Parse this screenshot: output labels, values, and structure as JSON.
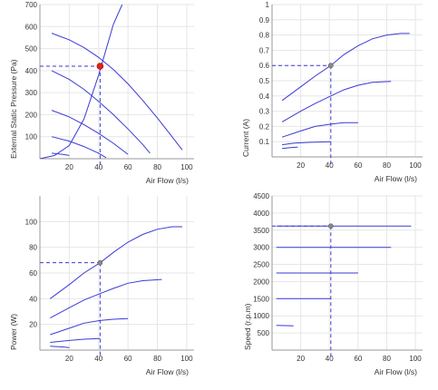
{
  "chart_data": [
    {
      "type": "line",
      "ylabel": "External Static Pressure (Pa)",
      "xlabel": "Air Flow (l/s)",
      "xlim": [
        0,
        105
      ],
      "ylim": [
        0,
        700
      ],
      "x_ticks": [
        20,
        40,
        60,
        80,
        100
      ],
      "y_ticks": [
        100,
        200,
        300,
        400,
        500,
        600,
        700
      ],
      "grid": true,
      "series": [
        {
          "values": [
            [
              8,
              570
            ],
            [
              20,
              540
            ],
            [
              30,
              505
            ],
            [
              40,
              460
            ],
            [
              50,
              405
            ],
            [
              60,
              340
            ],
            [
              70,
              265
            ],
            [
              80,
              185
            ],
            [
              90,
              100
            ],
            [
              97,
              40
            ]
          ]
        },
        {
          "values": [
            [
              8,
              400
            ],
            [
              20,
              360
            ],
            [
              30,
              315
            ],
            [
              40,
              260
            ],
            [
              50,
              200
            ],
            [
              60,
              135
            ],
            [
              70,
              65
            ],
            [
              75,
              25
            ]
          ]
        },
        {
          "values": [
            [
              8,
              220
            ],
            [
              20,
              190
            ],
            [
              30,
              155
            ],
            [
              40,
              115
            ],
            [
              50,
              70
            ],
            [
              60,
              20
            ]
          ]
        },
        {
          "values": [
            [
              8,
              100
            ],
            [
              20,
              80
            ],
            [
              30,
              55
            ],
            [
              40,
              25
            ],
            [
              45,
              5
            ]
          ]
        },
        {
          "values": [
            [
              8,
              25
            ],
            [
              15,
              20
            ],
            [
              20,
              15
            ]
          ]
        },
        {
          "values": [
            [
              0,
              0
            ],
            [
              10,
              15
            ],
            [
              20,
              60
            ],
            [
              30,
              180
            ],
            [
              40,
              380
            ],
            [
              50,
              610
            ],
            [
              56,
              700
            ]
          ]
        }
      ],
      "operating_point": {
        "x": 41,
        "y": 420,
        "color": "#e0201c"
      }
    },
    {
      "type": "line",
      "ylabel": "Current (A)",
      "xlabel": "Air Flow (l/s)",
      "xlim": [
        0,
        105
      ],
      "ylim": [
        0,
        1
      ],
      "x_ticks": [
        20,
        40,
        60,
        80,
        100
      ],
      "y_ticks": [
        0.1,
        0.2,
        0.3,
        0.4,
        0.5,
        0.6,
        0.7,
        0.8,
        0.9,
        1
      ],
      "y_tick_labels": [
        "0.1",
        "0.2",
        "0.3",
        "0.4",
        "0.5",
        "0.6",
        "0.7",
        "0.8",
        "0.9",
        "1"
      ],
      "grid": true,
      "series": [
        {
          "values": [
            [
              7,
              0.37
            ],
            [
              20,
              0.46
            ],
            [
              30,
              0.53
            ],
            [
              41,
              0.6
            ],
            [
              50,
              0.67
            ],
            [
              60,
              0.73
            ],
            [
              70,
              0.775
            ],
            [
              80,
              0.8
            ],
            [
              90,
              0.81
            ],
            [
              96,
              0.81
            ]
          ]
        },
        {
          "values": [
            [
              7,
              0.23
            ],
            [
              20,
              0.3
            ],
            [
              30,
              0.35
            ],
            [
              41,
              0.4
            ],
            [
              50,
              0.44
            ],
            [
              60,
              0.47
            ],
            [
              70,
              0.49
            ],
            [
              83,
              0.495
            ]
          ]
        },
        {
          "values": [
            [
              7,
              0.13
            ],
            [
              20,
              0.17
            ],
            [
              30,
              0.2
            ],
            [
              41,
              0.215
            ],
            [
              50,
              0.225
            ],
            [
              60,
              0.225
            ]
          ]
        },
        {
          "values": [
            [
              7,
              0.08
            ],
            [
              15,
              0.09
            ],
            [
              25,
              0.095
            ],
            [
              41,
              0.1
            ]
          ]
        },
        {
          "values": [
            [
              7,
              0.055
            ],
            [
              12,
              0.06
            ],
            [
              18,
              0.065
            ]
          ]
        }
      ],
      "operating_point": {
        "x": 41,
        "y": 0.6,
        "color": "#888888"
      }
    },
    {
      "type": "line",
      "ylabel": "Power (W)",
      "xlabel": "Air Flow (l/s)",
      "xlim": [
        0,
        105
      ],
      "ylim": [
        0,
        120
      ],
      "x_ticks": [
        20,
        40,
        60,
        80,
        100
      ],
      "y_ticks": [
        20,
        40,
        60,
        80,
        100
      ],
      "grid": true,
      "series": [
        {
          "values": [
            [
              7,
              40
            ],
            [
              20,
              51
            ],
            [
              30,
              60
            ],
            [
              41,
              68
            ],
            [
              50,
              76
            ],
            [
              60,
              84
            ],
            [
              70,
              90
            ],
            [
              80,
              94
            ],
            [
              90,
              96
            ],
            [
              97,
              96
            ]
          ]
        },
        {
          "values": [
            [
              7,
              25
            ],
            [
              20,
              33
            ],
            [
              30,
              39
            ],
            [
              41,
              44
            ],
            [
              50,
              48
            ],
            [
              60,
              52
            ],
            [
              70,
              54
            ],
            [
              83,
              55
            ]
          ]
        },
        {
          "values": [
            [
              7,
              12
            ],
            [
              20,
              17
            ],
            [
              30,
              21
            ],
            [
              41,
              23
            ],
            [
              50,
              24
            ],
            [
              60,
              24.5
            ]
          ]
        },
        {
          "values": [
            [
              7,
              6
            ],
            [
              20,
              7.5
            ],
            [
              30,
              8.5
            ],
            [
              41,
              9
            ]
          ]
        },
        {
          "values": [
            [
              7,
              3
            ],
            [
              15,
              2.5
            ],
            [
              20,
              2
            ]
          ]
        }
      ],
      "operating_point": {
        "x": 41,
        "y": 68,
        "color": "#888888"
      }
    },
    {
      "type": "line",
      "ylabel": "Speed (r.p.m)",
      "xlabel": "Air Flow (l/s)",
      "xlim": [
        0,
        105
      ],
      "ylim": [
        0,
        4500
      ],
      "x_ticks": [
        20,
        40,
        60,
        80,
        100
      ],
      "y_ticks": [
        500,
        1000,
        1500,
        2000,
        2500,
        3000,
        3500,
        4000,
        4500
      ],
      "grid": true,
      "series": [
        {
          "values": [
            [
              3,
              3620
            ],
            [
              97,
              3620
            ]
          ]
        },
        {
          "values": [
            [
              3,
              3000
            ],
            [
              83,
              3000
            ]
          ]
        },
        {
          "values": [
            [
              3,
              2250
            ],
            [
              60,
              2250
            ]
          ]
        },
        {
          "values": [
            [
              3,
              1500
            ],
            [
              41,
              1500
            ]
          ]
        },
        {
          "values": [
            [
              3,
              720
            ],
            [
              15,
              710
            ]
          ]
        }
      ],
      "operating_point": {
        "x": 41,
        "y": 3620,
        "color": "#888888"
      }
    }
  ]
}
